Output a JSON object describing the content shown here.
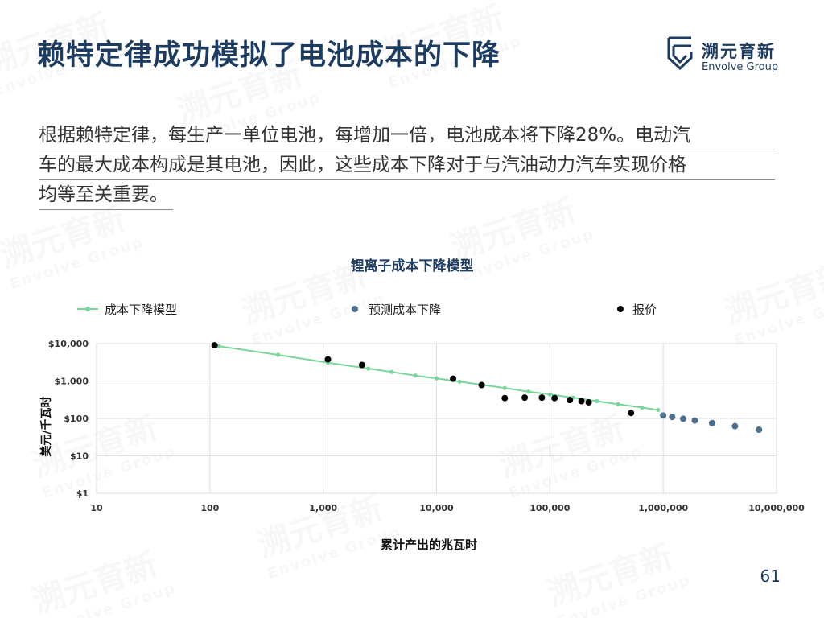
{
  "slide": {
    "title": "赖特定律成功模拟了电池成本的下降",
    "logo_cn": "溯元育新",
    "logo_en": "Envolve Group",
    "paragraph_lines": [
      "根据赖特定律，每生产一单位电池，每增加一倍，电池成本将下降28%。电动汽",
      "车的最大成本构成是其电池，因此，这些成本下降对于与汽油动力汽车实现价格",
      "均等至关重要。"
    ],
    "page_number": "61",
    "colors": {
      "title": "#1d3a5f",
      "model_line": "#7ad69c",
      "forecast": "#4e6e8e",
      "quote": "#000000"
    }
  },
  "chart_data": {
    "type": "scatter",
    "title": "锂离子成本下降模型",
    "xlabel": "累计产出的兆瓦时",
    "ylabel": "美元/千瓦时",
    "x_scale": "log",
    "y_scale": "log",
    "xlim": [
      10,
      10000000
    ],
    "ylim": [
      1,
      10000
    ],
    "x_ticks": [
      {
        "v": 10,
        "label": "10"
      },
      {
        "v": 100,
        "label": "100"
      },
      {
        "v": 1000,
        "label": "1,000"
      },
      {
        "v": 10000,
        "label": "10,000"
      },
      {
        "v": 100000,
        "label": "100,000"
      },
      {
        "v": 1000000,
        "label": "1,000,000"
      },
      {
        "v": 10000000,
        "label": "10,000,000"
      }
    ],
    "y_ticks": [
      {
        "v": 1,
        "label": "$1"
      },
      {
        "v": 10,
        "label": "$10"
      },
      {
        "v": 100,
        "label": "$100"
      },
      {
        "v": 1000,
        "label": "$1,000"
      },
      {
        "v": 10000,
        "label": "$10,000"
      }
    ],
    "grid": true,
    "legend_position": "top",
    "series": [
      {
        "name": "成本下降模型",
        "kind": "line-markers",
        "color": "#7ad69c",
        "points": [
          [
            120,
            8500
          ],
          [
            400,
            5000
          ],
          [
            1100,
            3100
          ],
          [
            2500,
            2150
          ],
          [
            4000,
            1750
          ],
          [
            6500,
            1400
          ],
          [
            10000,
            1180
          ],
          [
            16000,
            960
          ],
          [
            26000,
            780
          ],
          [
            40000,
            650
          ],
          [
            65000,
            520
          ],
          [
            100000,
            440
          ],
          [
            160000,
            360
          ],
          [
            260000,
            290
          ],
          [
            400000,
            240
          ],
          [
            650000,
            195
          ],
          [
            900000,
            168
          ]
        ]
      },
      {
        "name": "预测成本下降",
        "kind": "markers",
        "color": "#4e6e8e",
        "points": [
          [
            1000000,
            120
          ],
          [
            1200000,
            110
          ],
          [
            1500000,
            98
          ],
          [
            1900000,
            88
          ],
          [
            2700000,
            75
          ],
          [
            4300000,
            62
          ],
          [
            7000000,
            50
          ]
        ]
      },
      {
        "name": "报价",
        "kind": "markers",
        "color": "#000000",
        "points": [
          [
            110,
            9000
          ],
          [
            1100,
            3800
          ],
          [
            2200,
            2700
          ],
          [
            14000,
            1150
          ],
          [
            25000,
            780
          ],
          [
            40000,
            350
          ],
          [
            60000,
            360
          ],
          [
            85000,
            360
          ],
          [
            110000,
            350
          ],
          [
            150000,
            310
          ],
          [
            190000,
            290
          ],
          [
            220000,
            270
          ],
          [
            520000,
            140
          ]
        ]
      }
    ]
  }
}
